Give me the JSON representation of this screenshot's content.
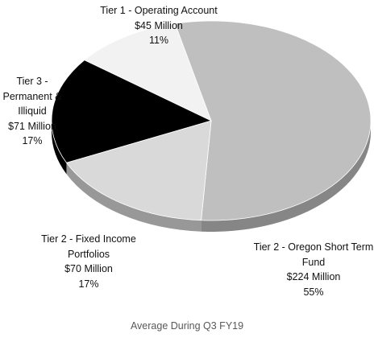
{
  "chart_data": {
    "type": "pie",
    "title": "Average During Q3 FY19",
    "categories": [
      "Tier 1 - Operating Account",
      "Tier 2 - Oregon Short Term Fund",
      "Tier 2 - Fixed Income Portfolios",
      "Tier 3 - Permanent & Illiquid"
    ],
    "values": [
      45,
      224,
      70,
      71
    ],
    "value_labels": [
      "$45 Million",
      "$224 Million",
      "$70 Million",
      "$71 Million"
    ],
    "percentages": [
      11,
      55,
      17,
      17
    ],
    "percentage_labels": [
      "11%",
      "55%",
      "17%",
      "17%"
    ],
    "colors": [
      "#f2f2f2",
      "#bfbfbf",
      "#d9d9d9",
      "#000000"
    ]
  }
}
